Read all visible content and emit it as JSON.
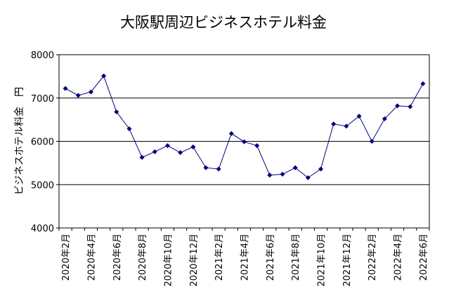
{
  "chart_data": {
    "type": "line",
    "title": "大阪駅周辺ビジネスホテル料金",
    "xlabel": "",
    "ylabel": "ビジネスホテル料金　円",
    "ylim": [
      4000,
      8000
    ],
    "yticks": [
      4000,
      5000,
      6000,
      7000,
      8000
    ],
    "grid": "horizontal",
    "legend": "none",
    "colors": {
      "line": "#00007f",
      "marker": "#00007f",
      "grid": "#000000",
      "plot_bg": "#ffffff"
    },
    "categories": [
      "2020年2月",
      "2020年3月",
      "2020年4月",
      "2020年5月",
      "2020年6月",
      "2020年7月",
      "2020年8月",
      "2020年9月",
      "2020年10月",
      "2020年11月",
      "2020年12月",
      "2021年1月",
      "2021年2月",
      "2021年3月",
      "2021年4月",
      "2021年5月",
      "2021年6月",
      "2021年7月",
      "2021年8月",
      "2021年9月",
      "2021年10月",
      "2021年11月",
      "2021年12月",
      "2022年1月",
      "2022年2月",
      "2022年3月",
      "2022年4月",
      "2022年5月",
      "2022年6月"
    ],
    "tick_labels": [
      "2020年2月",
      "2020年4月",
      "2020年6月",
      "2020年8月",
      "2020年10月",
      "2020年12月",
      "2021年2月",
      "2021年4月",
      "2021年6月",
      "2021年8月",
      "2021年10月",
      "2021年12月",
      "2022年2月",
      "2022年4月",
      "2022年6月"
    ],
    "series": [
      {
        "values": [
          7220,
          7060,
          7140,
          7510,
          6680,
          6290,
          5630,
          5760,
          5900,
          5740,
          5870,
          5390,
          5360,
          6180,
          5990,
          5900,
          5220,
          5240,
          5390,
          5160,
          5360,
          6400,
          6350,
          6580,
          6000,
          6520,
          6820,
          6800,
          7330
        ]
      }
    ]
  }
}
